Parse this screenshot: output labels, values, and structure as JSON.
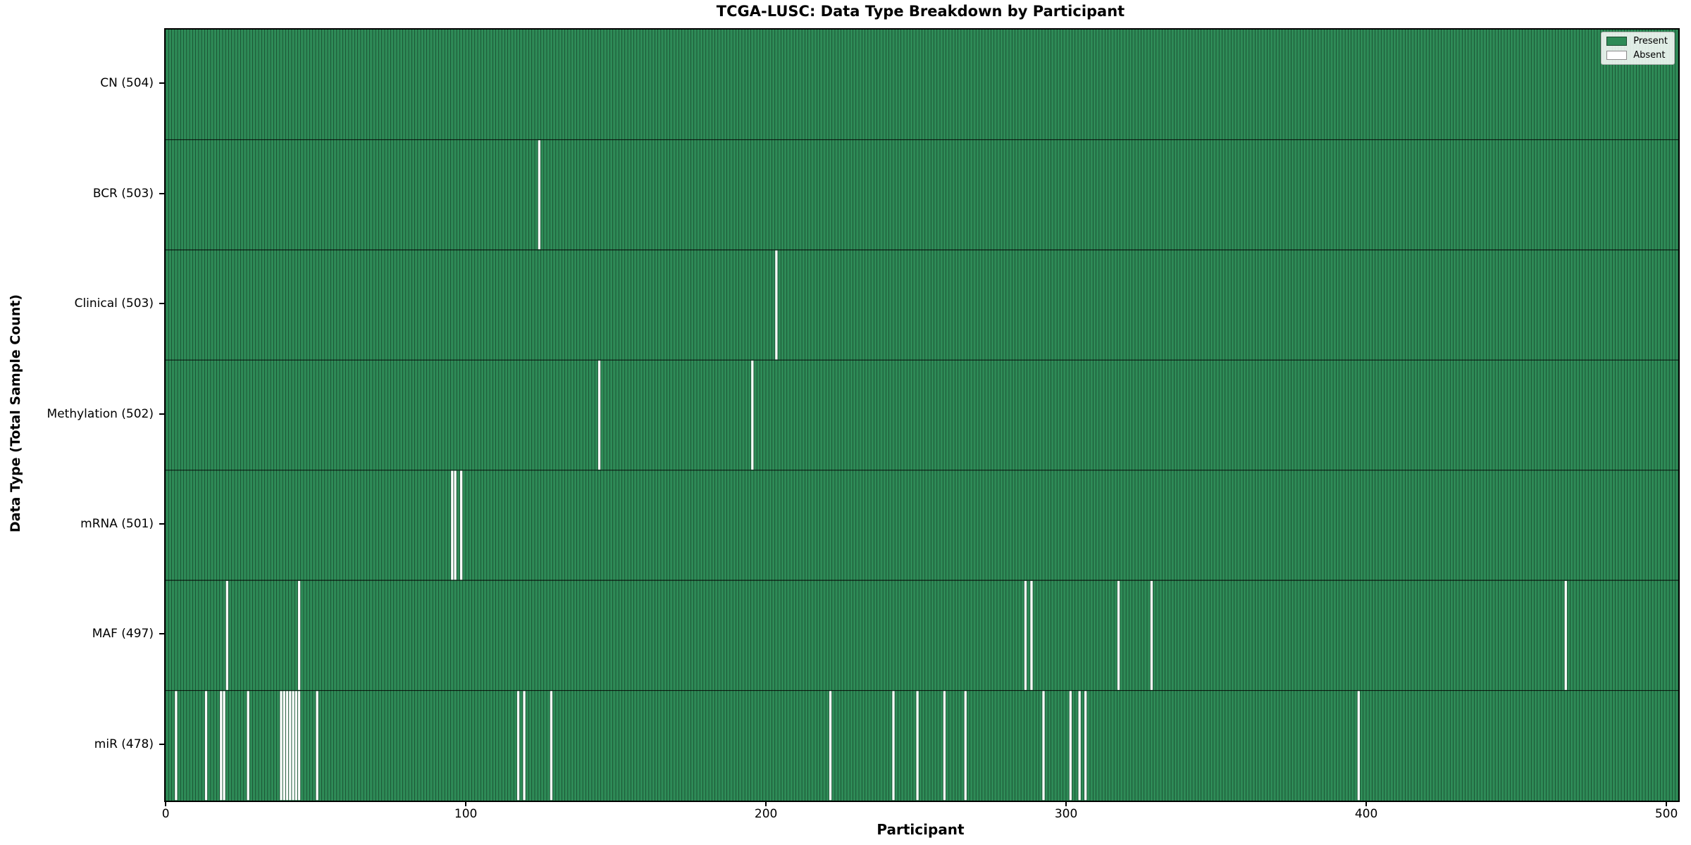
{
  "chart_data": {
    "type": "heatmap",
    "title": "TCGA-LUSC: Data Type Breakdown by Participant",
    "xlabel": "Participant",
    "ylabel": "Data Type (Total Sample Count)",
    "x_ticks": [
      0,
      100,
      200,
      300,
      400,
      500
    ],
    "xlim": [
      0,
      504
    ],
    "n_participants": 504,
    "grid": false,
    "legend_position": "upper right",
    "legend": [
      {
        "label": "Present",
        "color": "#2e8b57"
      },
      {
        "label": "Absent",
        "color": "#ffffff"
      }
    ],
    "colors": {
      "present_fill": "#2e8b57",
      "bar_edge": "rgba(0,0,0,0.55)",
      "absent_fill": "#ffffff",
      "frame": "#000000"
    },
    "rows": [
      {
        "label": "CN (504)",
        "data_type": "CN",
        "total_sample_count": 504,
        "absent_participants": []
      },
      {
        "label": "BCR (503)",
        "data_type": "BCR",
        "total_sample_count": 503,
        "absent_participants": [
          124
        ]
      },
      {
        "label": "Clinical (503)",
        "data_type": "Clinical",
        "total_sample_count": 503,
        "absent_participants": [
          203
        ]
      },
      {
        "label": "Methylation (502)",
        "data_type": "Methylation",
        "total_sample_count": 502,
        "absent_participants": [
          144,
          195
        ]
      },
      {
        "label": "mRNA (501)",
        "data_type": "mRNA",
        "total_sample_count": 501,
        "absent_participants": [
          95,
          96,
          98
        ]
      },
      {
        "label": "MAF (497)",
        "data_type": "MAF",
        "total_sample_count": 497,
        "absent_participants": [
          20,
          44,
          286,
          288,
          317,
          328,
          466
        ]
      },
      {
        "label": "miR (478)",
        "data_type": "miR",
        "total_sample_count": 478,
        "absent_participants": [
          3,
          13,
          18,
          19,
          27,
          38,
          39,
          40,
          41,
          42,
          43,
          44,
          50,
          117,
          119,
          128,
          221,
          242,
          250,
          259,
          266,
          292,
          301,
          304,
          306,
          397
        ]
      }
    ]
  }
}
